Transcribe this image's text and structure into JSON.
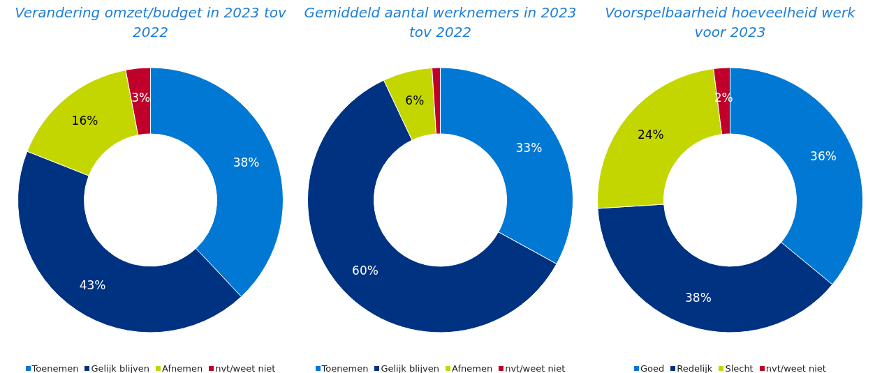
{
  "chart_data": [
    {
      "type": "donut",
      "title": "Verandering omzet/budget in 2023 tov 2022",
      "categories": [
        "Toenemen",
        "Gelijk blijven",
        "Afnemen",
        "nvt/weet niet"
      ],
      "values": [
        38,
        43,
        16,
        3
      ],
      "colors": [
        "#0078d4",
        "#003282",
        "#c4d600",
        "#c0002a"
      ],
      "value_labels": [
        "38%",
        "43%",
        "16%",
        "3%"
      ],
      "legend": "bottom"
    },
    {
      "type": "donut",
      "title": "Gemiddeld aantal werknemers in 2023 tov 2022",
      "categories": [
        "Toenemen",
        "Gelijk blijven",
        "Afnemen",
        "nvt/weet niet"
      ],
      "values": [
        33,
        60,
        6,
        1
      ],
      "colors": [
        "#0078d4",
        "#003282",
        "#c4d600",
        "#c0002a"
      ],
      "value_labels": [
        "33%",
        "60%",
        "6%",
        null
      ],
      "legend": "bottom"
    },
    {
      "type": "donut",
      "title": "Voorspelbaarheid hoeveelheid werk voor 2023",
      "categories": [
        "Goed",
        "Redelijk",
        "Slecht",
        "nvt/weet niet"
      ],
      "values": [
        36,
        38,
        24,
        2
      ],
      "colors": [
        "#0078d4",
        "#003282",
        "#c4d600",
        "#c0002a"
      ],
      "value_labels": [
        "36%",
        "38%",
        "24%",
        "2%"
      ],
      "legend": "bottom"
    }
  ]
}
